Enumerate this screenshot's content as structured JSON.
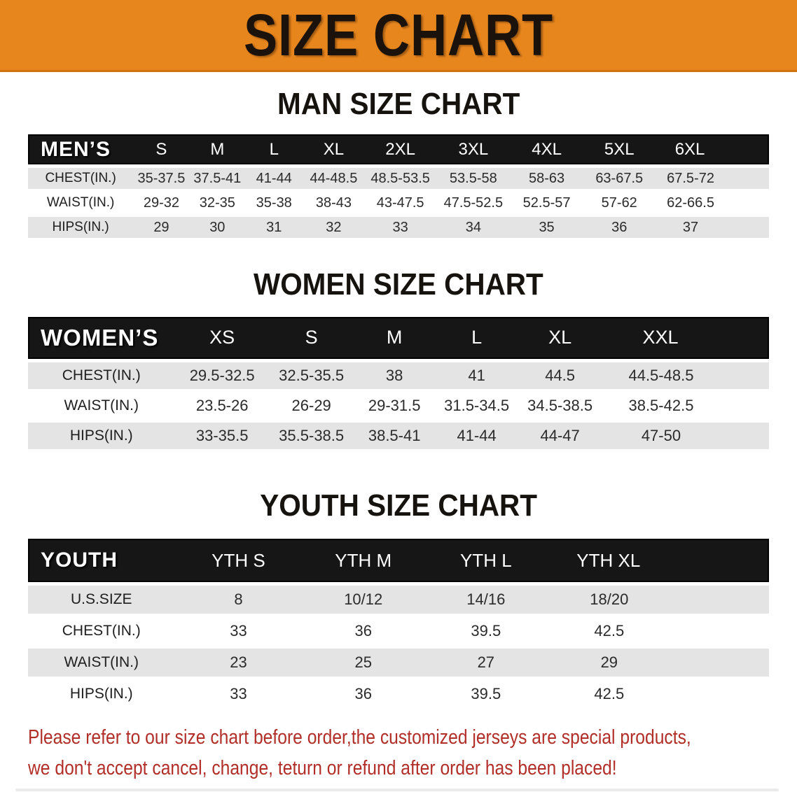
{
  "banner": {
    "title": "SIZE CHART"
  },
  "sections": [
    {
      "heading": "MAN SIZE CHART",
      "table": {
        "header": [
          "MEN’S",
          "S",
          "M",
          "L",
          "XL",
          "2XL",
          "3XL",
          "4XL",
          "5XL",
          "6XL"
        ],
        "rows": [
          [
            "CHEST(IN.)",
            "35-37.5",
            "37.5-41",
            "41-44",
            "44-48.5",
            "48.5-53.5",
            "53.5-58",
            "58-63",
            "63-67.5",
            "67.5-72"
          ],
          [
            "WAIST(IN.)",
            "29-32",
            "32-35",
            "35-38",
            "38-43",
            "43-47.5",
            "47.5-52.5",
            "52.5-57",
            "57-62",
            "62-66.5"
          ],
          [
            "HIPS(IN.)",
            "29",
            "30",
            "31",
            "32",
            "33",
            "34",
            "35",
            "36",
            "37"
          ]
        ]
      }
    },
    {
      "heading": "WOMEN SIZE CHART",
      "table": {
        "header": [
          "WOMEN’S",
          "XS",
          "S",
          "M",
          "L",
          "XL",
          "XXL"
        ],
        "rows": [
          [
            "CHEST(IN.)",
            "29.5-32.5",
            "32.5-35.5",
            "38",
            "41",
            "44.5",
            "44.5-48.5"
          ],
          [
            "WAIST(IN.)",
            "23.5-26",
            "26-29",
            "29-31.5",
            "31.5-34.5",
            "34.5-38.5",
            "38.5-42.5"
          ],
          [
            "HIPS(IN.)",
            "33-35.5",
            "35.5-38.5",
            "38.5-41",
            "41-44",
            "44-47",
            "47-50"
          ]
        ]
      }
    },
    {
      "heading": "YOUTH SIZE CHART",
      "table": {
        "header": [
          "YOUTH",
          "YTH S",
          "YTH M",
          "YTH L",
          "YTH XL"
        ],
        "rows": [
          [
            "U.S.SIZE",
            "8",
            "10/12",
            "14/16",
            "18/20"
          ],
          [
            "CHEST(IN.)",
            "33",
            "36",
            "39.5",
            "42.5"
          ],
          [
            "WAIST(IN.)",
            "23",
            "25",
            "27",
            "29"
          ],
          [
            "HIPS(IN.)",
            "33",
            "36",
            "39.5",
            "42.5"
          ]
        ]
      }
    }
  ],
  "notice": {
    "line1": "Please refer to our size chart before order,the customized jerseys are special products,",
    "line2": "we don't accept cancel, change, teturn or refund after order has been placed!"
  },
  "colors": {
    "banner_bg": "#E8861E",
    "banner_text": "#1B130B",
    "table_header_bg": "#161616",
    "table_header_text": "#FFFFFF",
    "row_alt_bg": "#E4E4E4",
    "notice_text": "#B22E28"
  }
}
